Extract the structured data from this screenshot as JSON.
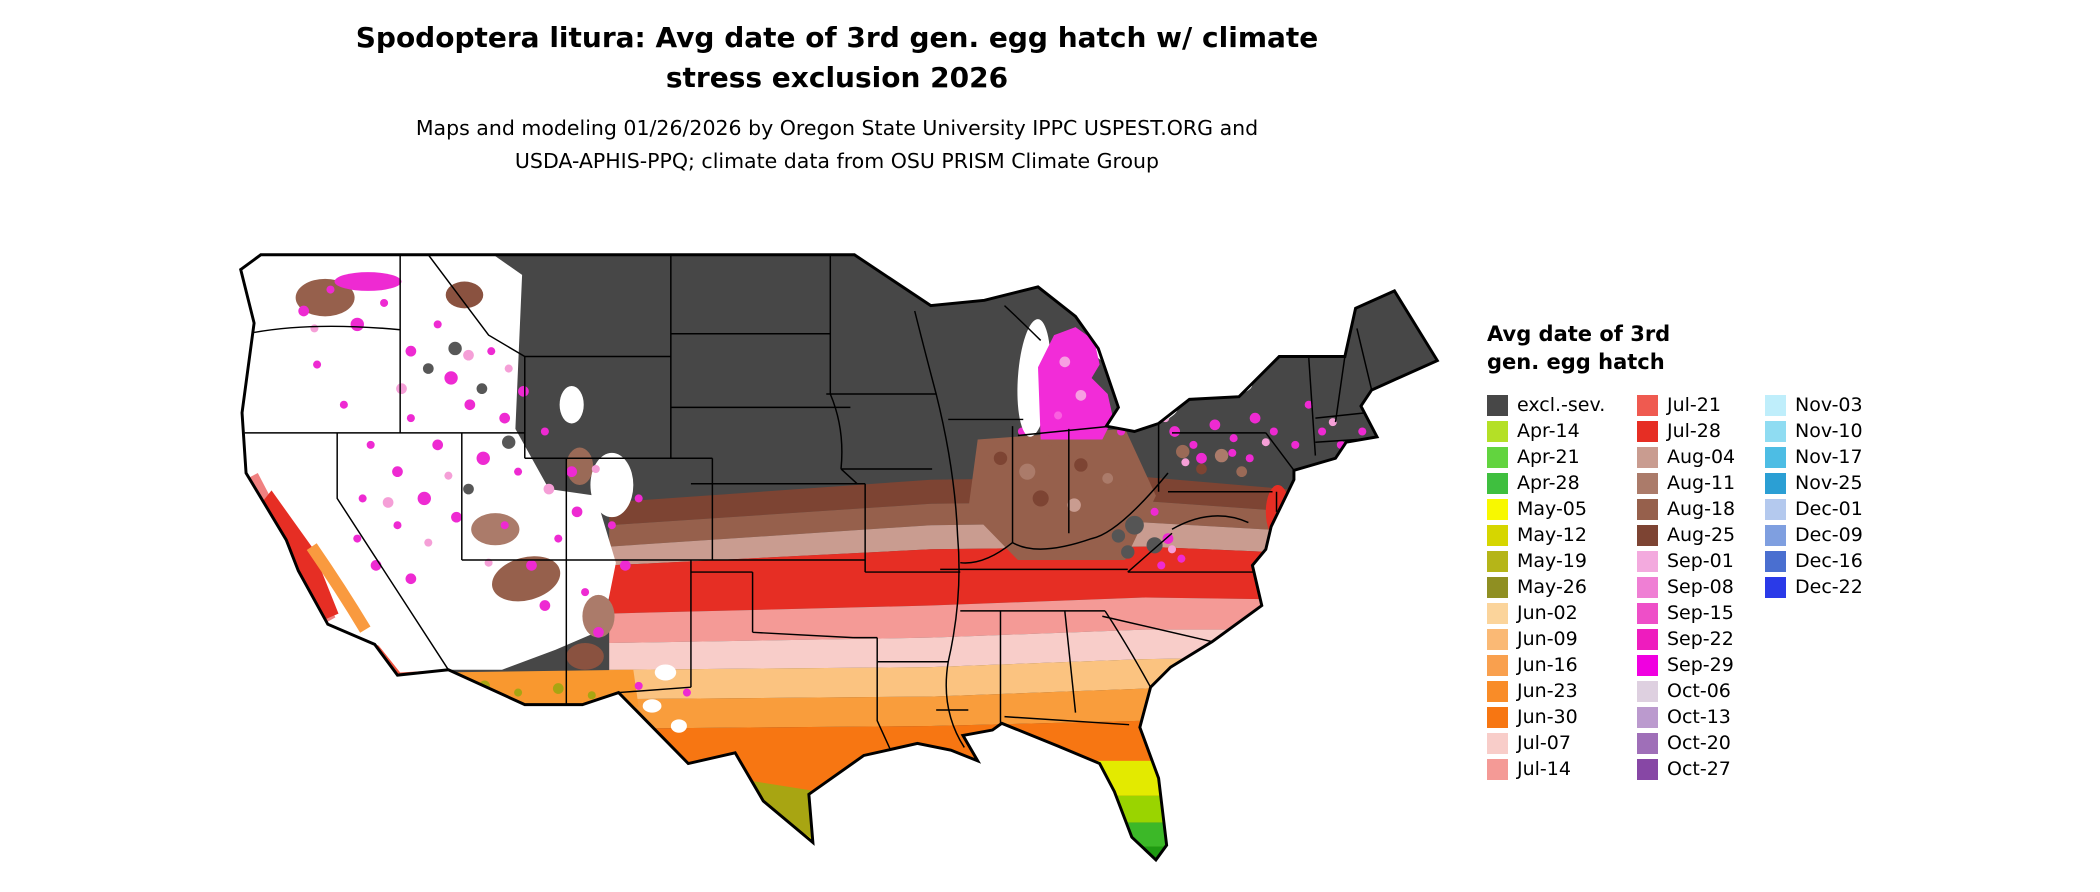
{
  "title": {
    "line1": "Spodoptera litura: Avg date of 3rd gen. egg hatch w/ climate",
    "line2": "stress exclusion 2026"
  },
  "subtitle": {
    "line1": "Maps and modeling 01/26/2026 by Oregon State University IPPC USPEST.ORG and",
    "line2": "USDA-APHIS-PPQ; climate data from OSU PRISM Climate Group"
  },
  "legend": {
    "title_line1": "Avg date of 3rd",
    "title_line2": "gen. egg hatch",
    "columns": [
      [
        {
          "label": "excl.-sev.",
          "color": "#474747"
        },
        {
          "label": "Apr-14",
          "color": "#b4e026"
        },
        {
          "label": "Apr-21",
          "color": "#62d43f"
        },
        {
          "label": "Apr-28",
          "color": "#3fbf3f"
        },
        {
          "label": "May-05",
          "color": "#f8f800"
        },
        {
          "label": "May-12",
          "color": "#d6d600"
        },
        {
          "label": "May-19",
          "color": "#b5b518"
        },
        {
          "label": "May-26",
          "color": "#8f8f22"
        },
        {
          "label": "Jun-02",
          "color": "#fbd49b"
        },
        {
          "label": "Jun-09",
          "color": "#fab975"
        },
        {
          "label": "Jun-16",
          "color": "#f9a04e"
        },
        {
          "label": "Jun-23",
          "color": "#f98c28"
        },
        {
          "label": "Jun-30",
          "color": "#f77612"
        },
        {
          "label": "Jul-07",
          "color": "#f8cdc9"
        },
        {
          "label": "Jul-14",
          "color": "#f49a96"
        }
      ],
      [
        {
          "label": "Jul-21",
          "color": "#ef5a50"
        },
        {
          "label": "Jul-28",
          "color": "#e62e24"
        },
        {
          "label": "Aug-04",
          "color": "#c99c90"
        },
        {
          "label": "Aug-11",
          "color": "#ab7b6a"
        },
        {
          "label": "Aug-18",
          "color": "#96604c"
        },
        {
          "label": "Aug-25",
          "color": "#7d4433"
        },
        {
          "label": "Sep-01",
          "color": "#f3aade"
        },
        {
          "label": "Sep-08",
          "color": "#ef7fd4"
        },
        {
          "label": "Sep-15",
          "color": "#ee4fc8"
        },
        {
          "label": "Sep-22",
          "color": "#ee1cbe"
        },
        {
          "label": "Sep-29",
          "color": "#f000e0"
        },
        {
          "label": "Oct-06",
          "color": "#ded0e0"
        },
        {
          "label": "Oct-13",
          "color": "#bb9ace"
        },
        {
          "label": "Oct-20",
          "color": "#9f6fb8"
        },
        {
          "label": "Oct-27",
          "color": "#8747a5"
        }
      ],
      [
        {
          "label": "Nov-03",
          "color": "#bfeefb"
        },
        {
          "label": "Nov-10",
          "color": "#8fdcf2"
        },
        {
          "label": "Nov-17",
          "color": "#4dbde4"
        },
        {
          "label": "Nov-25",
          "color": "#2b9fd4"
        },
        {
          "label": "Dec-01",
          "color": "#b4c9ee"
        },
        {
          "label": "Dec-09",
          "color": "#7f9fe0"
        },
        {
          "label": "Dec-16",
          "color": "#4a6fd0"
        },
        {
          "label": "Dec-22",
          "color": "#2a3ae8"
        }
      ]
    ]
  }
}
